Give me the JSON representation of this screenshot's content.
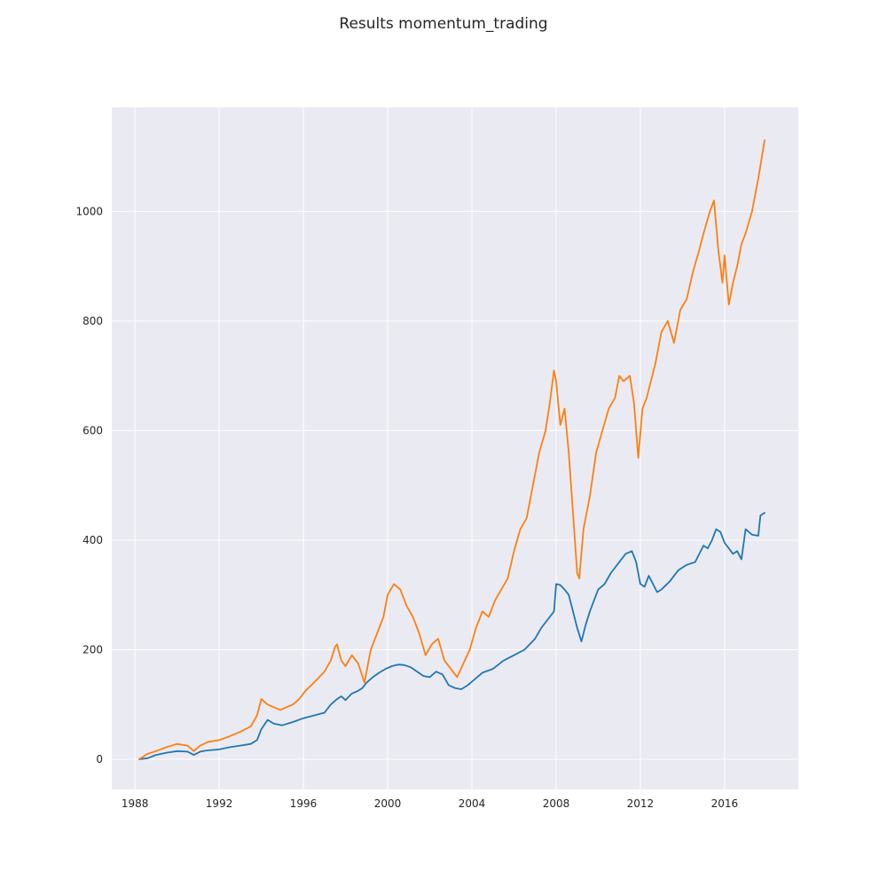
{
  "chart_data": {
    "type": "line",
    "title": "Results momentum_trading",
    "xlabel": "",
    "ylabel": "",
    "x_ticks": [
      1988,
      1992,
      1996,
      2000,
      2004,
      2008,
      2012,
      2016
    ],
    "y_ticks": [
      0,
      200,
      400,
      600,
      800,
      1000
    ],
    "xlim": [
      1986.9,
      2019.5
    ],
    "ylim": [
      -55,
      1190
    ],
    "grid": true,
    "legend": "none",
    "colors": {
      "plot_bg": "#eaeaf2",
      "grid": "#ffffff",
      "series_1": "#1f77b4",
      "series_2": "#ff7f0e"
    },
    "series": [
      {
        "color": "#1f77b4",
        "x": [
          1988.2,
          1988.6,
          1989.0,
          1989.5,
          1990.0,
          1990.5,
          1990.8,
          1991.1,
          1991.4,
          1992.0,
          1992.5,
          1993.0,
          1993.5,
          1993.8,
          1994.0,
          1994.3,
          1994.6,
          1995.0,
          1995.5,
          1996.0,
          1996.5,
          1997.0,
          1997.3,
          1997.6,
          1997.8,
          1998.0,
          1998.3,
          1998.6,
          1998.8,
          1999.0,
          1999.3,
          1999.6,
          1999.9,
          2000.2,
          2000.5,
          2000.8,
          2001.1,
          2001.4,
          2001.7,
          2002.0,
          2002.3,
          2002.6,
          2002.9,
          2003.2,
          2003.5,
          2003.8,
          2004.1,
          2004.5,
          2005.0,
          2005.5,
          2006.0,
          2006.5,
          2007.0,
          2007.3,
          2007.6,
          2007.9,
          2008.0,
          2008.2,
          2008.4,
          2008.6,
          2008.8,
          2009.0,
          2009.2,
          2009.4,
          2009.6,
          2010.0,
          2010.3,
          2010.6,
          2011.0,
          2011.3,
          2011.6,
          2011.8,
          2012.0,
          2012.2,
          2012.4,
          2012.6,
          2012.8,
          2013.0,
          2013.4,
          2013.8,
          2014.2,
          2014.6,
          2014.8,
          2015.0,
          2015.2,
          2015.4,
          2015.6,
          2015.8,
          2016.0,
          2016.2,
          2016.4,
          2016.6,
          2016.8,
          2017.0,
          2017.3,
          2017.6,
          2017.7,
          2017.9
        ],
        "values": [
          0,
          2,
          8,
          12,
          15,
          14,
          8,
          14,
          16,
          18,
          22,
          25,
          28,
          35,
          55,
          72,
          65,
          62,
          68,
          75,
          80,
          85,
          100,
          110,
          115,
          108,
          120,
          125,
          130,
          140,
          150,
          158,
          165,
          170,
          173,
          172,
          168,
          160,
          152,
          150,
          160,
          155,
          135,
          130,
          128,
          135,
          145,
          158,
          165,
          180,
          190,
          200,
          220,
          240,
          255,
          270,
          320,
          318,
          310,
          300,
          270,
          240,
          215,
          245,
          270,
          310,
          320,
          340,
          360,
          375,
          380,
          360,
          320,
          315,
          335,
          320,
          305,
          310,
          325,
          345,
          355,
          360,
          375,
          390,
          385,
          400,
          420,
          415,
          395,
          385,
          375,
          380,
          365,
          420,
          410,
          408,
          445,
          450
        ]
      },
      {
        "color": "#ff7f0e",
        "x": [
          1988.2,
          1988.6,
          1989.0,
          1989.5,
          1990.0,
          1990.5,
          1990.8,
          1991.1,
          1991.5,
          1992.0,
          1992.5,
          1993.0,
          1993.5,
          1993.8,
          1994.0,
          1994.3,
          1994.6,
          1994.9,
          1995.2,
          1995.5,
          1995.8,
          1996.1,
          1996.5,
          1997.0,
          1997.3,
          1997.5,
          1997.6,
          1997.8,
          1998.0,
          1998.3,
          1998.6,
          1998.9,
          1999.2,
          1999.5,
          1999.8,
          2000.0,
          2000.3,
          2000.6,
          2000.9,
          2001.2,
          2001.5,
          2001.8,
          2002.1,
          2002.4,
          2002.7,
          2003.0,
          2003.3,
          2003.6,
          2003.9,
          2004.2,
          2004.5,
          2004.8,
          2005.1,
          2005.4,
          2005.7,
          2006.0,
          2006.3,
          2006.6,
          2006.9,
          2007.2,
          2007.5,
          2007.7,
          2007.9,
          2008.0,
          2008.2,
          2008.4,
          2008.6,
          2008.8,
          2009.0,
          2009.1,
          2009.3,
          2009.6,
          2009.9,
          2010.2,
          2010.5,
          2010.8,
          2011.0,
          2011.2,
          2011.5,
          2011.7,
          2011.9,
          2012.1,
          2012.3,
          2012.5,
          2012.7,
          2013.0,
          2013.3,
          2013.6,
          2013.9,
          2014.2,
          2014.5,
          2014.8,
          2015.0,
          2015.3,
          2015.5,
          2015.7,
          2015.9,
          2016.0,
          2016.2,
          2016.4,
          2016.6,
          2016.8,
          2017.0,
          2017.3,
          2017.6,
          2017.9
        ],
        "values": [
          0,
          10,
          15,
          22,
          28,
          25,
          15,
          25,
          32,
          35,
          42,
          50,
          60,
          80,
          110,
          100,
          95,
          90,
          95,
          100,
          110,
          125,
          140,
          160,
          180,
          205,
          210,
          180,
          170,
          190,
          175,
          140,
          200,
          230,
          260,
          300,
          320,
          310,
          280,
          260,
          230,
          190,
          210,
          220,
          180,
          165,
          150,
          175,
          200,
          240,
          270,
          260,
          290,
          310,
          330,
          380,
          420,
          440,
          500,
          560,
          600,
          650,
          710,
          690,
          610,
          640,
          560,
          450,
          340,
          330,
          420,
          480,
          560,
          600,
          640,
          660,
          700,
          690,
          700,
          650,
          550,
          640,
          660,
          690,
          720,
          780,
          800,
          760,
          820,
          840,
          890,
          930,
          960,
          1000,
          1020,
          930,
          870,
          920,
          830,
          870,
          900,
          940,
          960,
          1000,
          1060,
          1130
        ]
      }
    ]
  }
}
